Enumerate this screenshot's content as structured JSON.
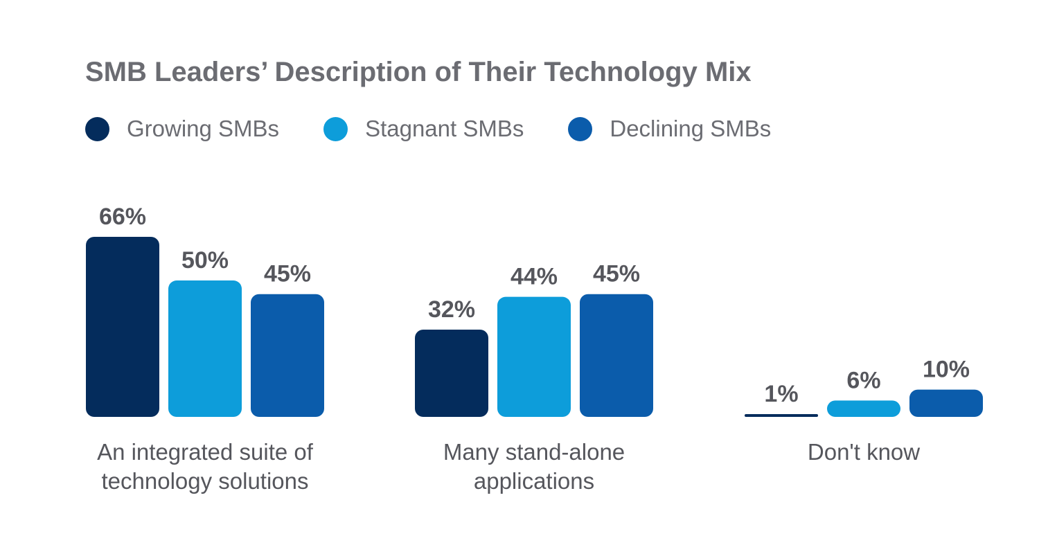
{
  "chart_data": {
    "type": "bar",
    "title": "SMB Leaders’ Description of Their Technology Mix",
    "categories": [
      [
        "An integrated suite of",
        "technology solutions"
      ],
      [
        "Many stand-alone",
        "applications"
      ],
      [
        "Don't know"
      ]
    ],
    "series": [
      {
        "name": "Growing SMBs",
        "color": "#042c5c",
        "values": [
          66,
          32,
          1
        ],
        "labels": [
          "66%",
          "32%",
          "1%"
        ]
      },
      {
        "name": "Stagnant SMBs",
        "color": "#0d9dda",
        "values": [
          50,
          44,
          6
        ],
        "labels": [
          "50%",
          "44%",
          "6%"
        ]
      },
      {
        "name": "Declining SMBs",
        "color": "#0b5cab",
        "values": [
          45,
          45,
          10
        ],
        "labels": [
          "45%",
          "45%",
          "10%"
        ]
      }
    ],
    "ylim": [
      0,
      66
    ],
    "xlabel": "",
    "ylabel": "",
    "legend": "top-left"
  }
}
